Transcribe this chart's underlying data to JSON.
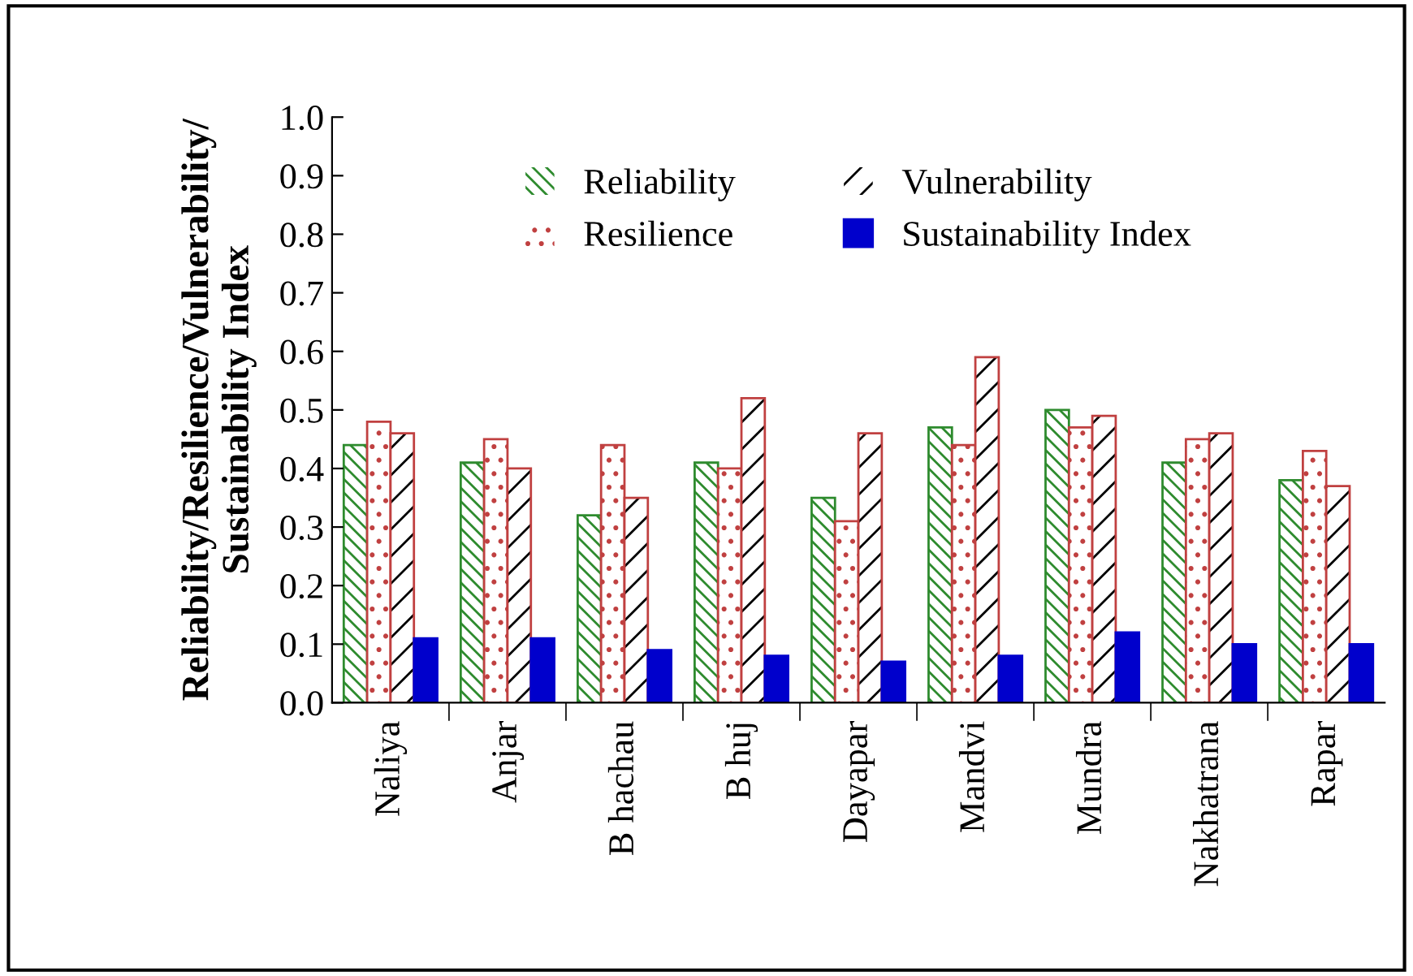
{
  "chart_data": {
    "type": "bar",
    "ylabel": "Reliability/Resilience/Vulnerability/\nSustainability Index",
    "categories": [
      "Naliya",
      "Anjar",
      "B hachau",
      "B huj",
      "Dayapar",
      "Mandvi",
      "Mundra",
      "Nakhatrana",
      "Rapar"
    ],
    "series": [
      {
        "name": "Reliability",
        "color": "#2e8b2e",
        "values": [
          0.44,
          0.41,
          0.32,
          0.41,
          0.35,
          0.47,
          0.5,
          0.41,
          0.38
        ]
      },
      {
        "name": "Resilience",
        "color": "#c04040",
        "values": [
          0.48,
          0.45,
          0.44,
          0.4,
          0.31,
          0.44,
          0.47,
          0.45,
          0.43
        ]
      },
      {
        "name": "Vulnerability",
        "color": "#000000",
        "values": [
          0.46,
          0.4,
          0.35,
          0.52,
          0.46,
          0.59,
          0.49,
          0.46,
          0.37
        ]
      },
      {
        "name": "Sustainability Index",
        "color": "#0000cc",
        "values": [
          0.11,
          0.11,
          0.09,
          0.08,
          0.07,
          0.08,
          0.12,
          0.1,
          0.1
        ]
      }
    ],
    "ylim": [
      0,
      1
    ],
    "yticks": [
      {
        "value": 0,
        "label": "0.0"
      },
      {
        "value": 0.1,
        "label": "0.1"
      },
      {
        "value": 0.2,
        "label": "0.2"
      },
      {
        "value": 0.3,
        "label": "0.3"
      },
      {
        "value": 0.4,
        "label": "0.4"
      },
      {
        "value": 0.5,
        "label": "0.5"
      },
      {
        "value": 0.6,
        "label": "0.6"
      },
      {
        "value": 0.7,
        "label": "0.7"
      },
      {
        "value": 0.8,
        "label": "0.8"
      },
      {
        "value": 0.9,
        "label": "0.9"
      },
      {
        "value": 1.0,
        "label": "1.0"
      }
    ],
    "grid": false,
    "legend": "top"
  }
}
